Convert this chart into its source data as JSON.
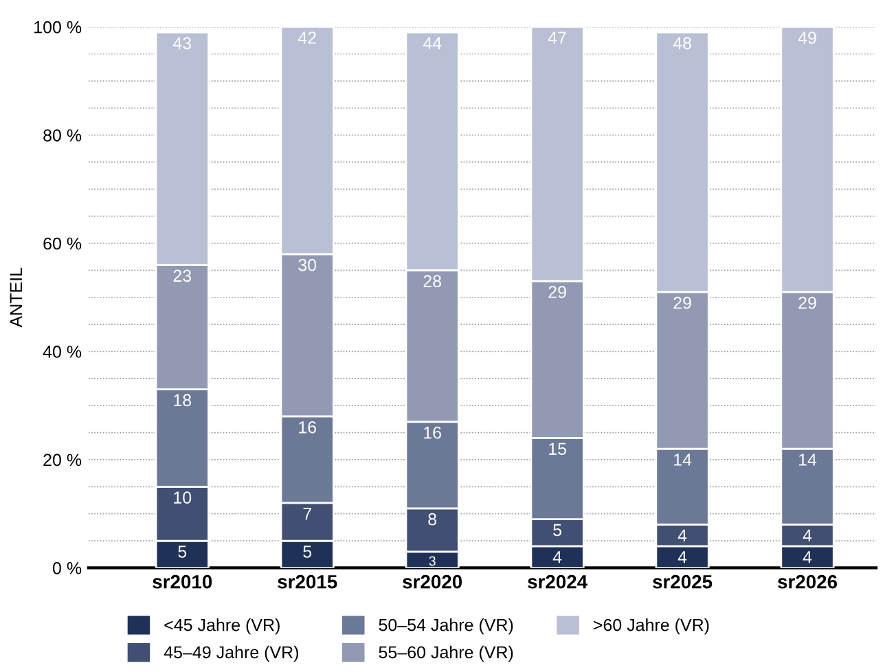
{
  "chart_data": {
    "type": "bar",
    "stacked": true,
    "ylabel": "ANTEIL",
    "categories": [
      "sr2010",
      "sr2015",
      "sr2020",
      "sr2024",
      "sr2025",
      "sr2026"
    ],
    "series": [
      {
        "name": "<45 Jahre (VR)",
        "color": "#1f3157",
        "values": [
          5,
          5,
          3,
          4,
          4,
          4
        ]
      },
      {
        "name": "45–49 Jahre (VR)",
        "color": "#404f72",
        "values": [
          10,
          7,
          8,
          5,
          4,
          4
        ]
      },
      {
        "name": "50–54 Jahre (VR)",
        "color": "#6b7896",
        "values": [
          18,
          16,
          16,
          15,
          14,
          14
        ]
      },
      {
        "name": "55–60 Jahre (VR)",
        "color": "#9299b3",
        "values": [
          23,
          30,
          28,
          29,
          29,
          29
        ]
      },
      {
        "name": ">60 Jahre (VR)",
        "color": "#b9bfd4",
        "values": [
          43,
          42,
          44,
          47,
          48,
          49
        ]
      }
    ],
    "ylim": [
      0,
      100
    ],
    "yticks": [
      {
        "value": 0,
        "label": "0 %"
      },
      {
        "value": 5,
        "label": null
      },
      {
        "value": 10,
        "label": null
      },
      {
        "value": 15,
        "label": null
      },
      {
        "value": 20,
        "label": "20 %"
      },
      {
        "value": 25,
        "label": null
      },
      {
        "value": 30,
        "label": null
      },
      {
        "value": 35,
        "label": null
      },
      {
        "value": 40,
        "label": "40 %"
      },
      {
        "value": 45,
        "label": null
      },
      {
        "value": 50,
        "label": null
      },
      {
        "value": 55,
        "label": null
      },
      {
        "value": 60,
        "label": "60 %"
      },
      {
        "value": 65,
        "label": null
      },
      {
        "value": 70,
        "label": null
      },
      {
        "value": 75,
        "label": null
      },
      {
        "value": 80,
        "label": "80 %"
      },
      {
        "value": 85,
        "label": null
      },
      {
        "value": 90,
        "label": null
      },
      {
        "value": 95,
        "label": null
      },
      {
        "value": 100,
        "label": "100 %"
      }
    ],
    "grid": "y",
    "legend": "bottom",
    "data_labels": true
  }
}
